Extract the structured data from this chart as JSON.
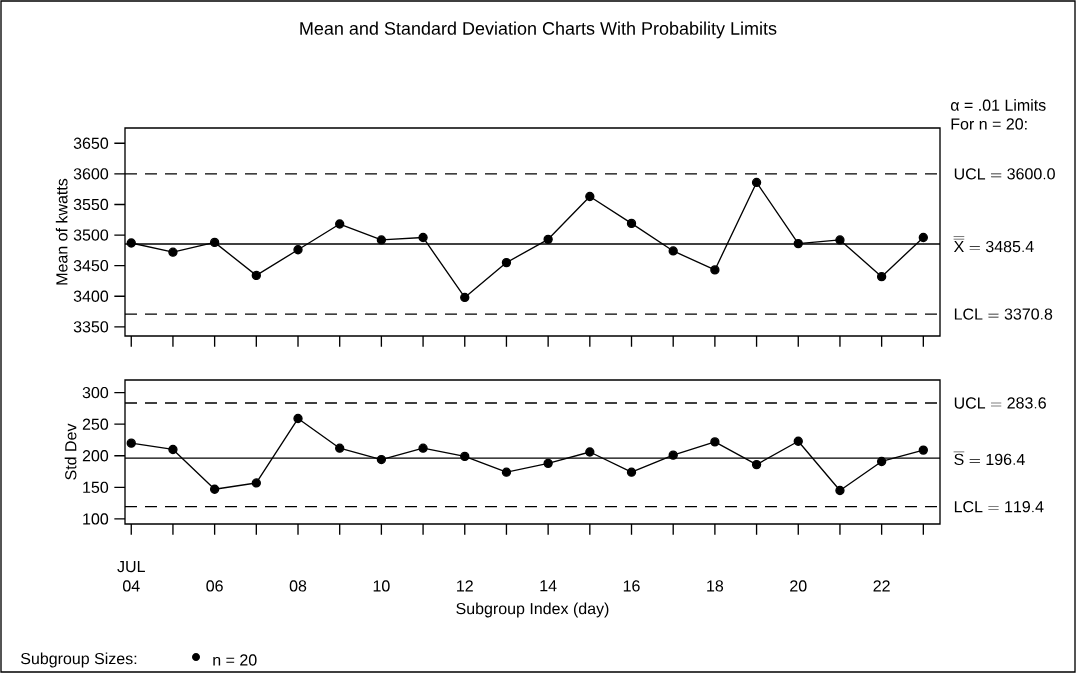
{
  "chart_data": [
    {
      "type": "line",
      "title": "Mean and Standard Deviation Charts With Probability Limits",
      "ylabel": "Mean of kwatts",
      "x": [
        4,
        5,
        6,
        7,
        8,
        9,
        10,
        11,
        12,
        13,
        14,
        15,
        16,
        17,
        18,
        19,
        20,
        21,
        22,
        23
      ],
      "series": [
        {
          "color": "#000000",
          "values": [
            3487,
            3472,
            3488,
            3434,
            3476,
            3518,
            3492,
            3496,
            3398,
            3455,
            3493,
            3563,
            3519,
            3474,
            3443,
            3586,
            3486,
            3492,
            3432,
            3496
          ]
        }
      ],
      "xlim": [
        3.85,
        23.4
      ],
      "ylim": [
        3335,
        3675
      ],
      "xticks": [
        {
          "value": 4,
          "label": null
        },
        {
          "value": 5,
          "label": null
        },
        {
          "value": 6,
          "label": null
        },
        {
          "value": 7,
          "label": null
        },
        {
          "value": 8,
          "label": null
        },
        {
          "value": 9,
          "label": null
        },
        {
          "value": 10,
          "label": null
        },
        {
          "value": 11,
          "label": null
        },
        {
          "value": 12,
          "label": null
        },
        {
          "value": 13,
          "label": null
        },
        {
          "value": 14,
          "label": null
        },
        {
          "value": 15,
          "label": null
        },
        {
          "value": 16,
          "label": null
        },
        {
          "value": 17,
          "label": null
        },
        {
          "value": 18,
          "label": null
        },
        {
          "value": 19,
          "label": null
        },
        {
          "value": 20,
          "label": null
        },
        {
          "value": 21,
          "label": null
        },
        {
          "value": 22,
          "label": null
        },
        {
          "value": 23,
          "label": null
        }
      ],
      "yticks": [
        3350,
        3400,
        3450,
        3500,
        3550,
        3600,
        3650
      ],
      "tick_labels": "y",
      "marker": "circle",
      "line_style": "solid",
      "ref_lines": [
        {
          "axis": "y",
          "value": 3600.0,
          "label": "\\mathrm{UCL}=\\mathrm{3600.0}",
          "line_style": "dashed"
        },
        {
          "axis": "y",
          "value": 3485.4,
          "label": "\\overline{\\overline{\\mathrm{X}}}=\\mathrm{3485.4}",
          "line_style": "solid"
        },
        {
          "axis": "y",
          "value": 3370.8,
          "label": "\\mathrm{LCL}=\\mathrm{3370.8}",
          "line_style": "dashed"
        }
      ],
      "annotations": [
        "α = .01 Limits",
        "For n = 20:"
      ]
    },
    {
      "type": "line",
      "ylabel": "Std Dev",
      "xlabel": "Subgroup Index (day)",
      "x": [
        4,
        5,
        6,
        7,
        8,
        9,
        10,
        11,
        12,
        13,
        14,
        15,
        16,
        17,
        18,
        19,
        20,
        21,
        22,
        23
      ],
      "series": [
        {
          "color": "#000000",
          "values": [
            220,
            210,
            147,
            157,
            259,
            212,
            194,
            212,
            199,
            174,
            188,
            206,
            174,
            201,
            222,
            186,
            223,
            145,
            191,
            209
          ]
        }
      ],
      "xlim": [
        3.85,
        23.4
      ],
      "ylim": [
        92,
        320
      ],
      "xticks": [
        {
          "value": 4,
          "label": "04"
        },
        {
          "value": 5,
          "label": null
        },
        {
          "value": 6,
          "label": "06"
        },
        {
          "value": 7,
          "label": null
        },
        {
          "value": 8,
          "label": "08"
        },
        {
          "value": 9,
          "label": null
        },
        {
          "value": 10,
          "label": "10"
        },
        {
          "value": 11,
          "label": null
        },
        {
          "value": 12,
          "label": "12"
        },
        {
          "value": 13,
          "label": null
        },
        {
          "value": 14,
          "label": "14"
        },
        {
          "value": 15,
          "label": null
        },
        {
          "value": 16,
          "label": "16"
        },
        {
          "value": 17,
          "label": null
        },
        {
          "value": 18,
          "label": "18"
        },
        {
          "value": 19,
          "label": null
        },
        {
          "value": 20,
          "label": "20"
        },
        {
          "value": 21,
          "label": null
        },
        {
          "value": 22,
          "label": "22"
        },
        {
          "value": 23,
          "label": null
        }
      ],
      "yticks": [
        100,
        150,
        200,
        250,
        300
      ],
      "marker": "circle",
      "line_style": "solid",
      "ref_lines": [
        {
          "axis": "y",
          "value": 283.6,
          "label": "\\mathrm{UCL}=\\mathrm{283.6}",
          "line_style": "dashed"
        },
        {
          "axis": "y",
          "value": 196.4,
          "label": "\\overline{\\mathrm{S}}=\\mathrm{196.4}",
          "line_style": "solid"
        },
        {
          "axis": "y",
          "value": 119.4,
          "label": "\\mathrm{LCL}=\\mathrm{119.4}",
          "line_style": "dashed"
        }
      ],
      "annotations": [
        "JUL",
        "Subgroup Sizes:",
        "n = 20"
      ]
    }
  ]
}
